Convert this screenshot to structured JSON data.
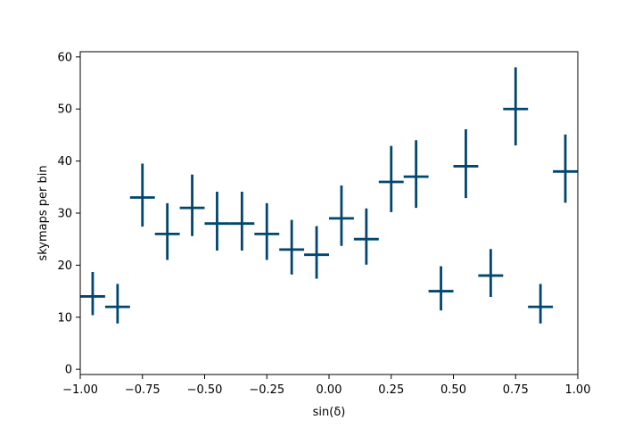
{
  "chart_data": {
    "type": "scatter",
    "title": "",
    "xlabel": "sin(δ)",
    "ylabel": "skymaps per bin",
    "xlim": [
      -1.0,
      1.0
    ],
    "ylim": [
      -1,
      61
    ],
    "x_ticks": [
      -1.0,
      -0.75,
      -0.5,
      -0.25,
      0.0,
      0.25,
      0.5,
      0.75,
      1.0
    ],
    "x_tick_labels": [
      "−1.00",
      "−0.75",
      "−0.50",
      "−0.25",
      "0.00",
      "0.25",
      "0.50",
      "0.75",
      "1.00"
    ],
    "y_ticks": [
      0,
      10,
      20,
      30,
      40,
      50,
      60
    ],
    "y_tick_labels": [
      "0",
      "10",
      "20",
      "30",
      "40",
      "50",
      "60"
    ],
    "grid": false,
    "color": "#00466e",
    "bin_half_width": 0.05,
    "series": [
      {
        "x": [
          -0.95,
          -0.85,
          -0.75,
          -0.65,
          -0.55,
          -0.45,
          -0.35,
          -0.25,
          -0.15,
          -0.05,
          0.05,
          0.15,
          0.25,
          0.35,
          0.45,
          0.55,
          0.65,
          0.75,
          0.85,
          0.95
        ],
        "y": [
          14,
          12,
          33,
          26,
          31,
          28,
          28,
          26,
          23,
          22,
          29,
          25,
          36,
          37,
          15,
          39,
          18,
          50,
          12,
          38
        ],
        "yerr_low": [
          10.4,
          8.8,
          27.4,
          21.0,
          25.6,
          22.8,
          22.8,
          21.0,
          18.2,
          17.4,
          23.7,
          20.1,
          30.2,
          31.0,
          11.3,
          32.9,
          13.9,
          43.0,
          8.8,
          32.0
        ],
        "yerr_high": [
          18.7,
          16.4,
          39.5,
          31.9,
          37.4,
          34.1,
          34.1,
          31.9,
          28.7,
          27.5,
          35.3,
          30.9,
          42.9,
          44.0,
          19.8,
          46.1,
          23.1,
          58.0,
          16.4,
          45.1
        ]
      }
    ]
  }
}
